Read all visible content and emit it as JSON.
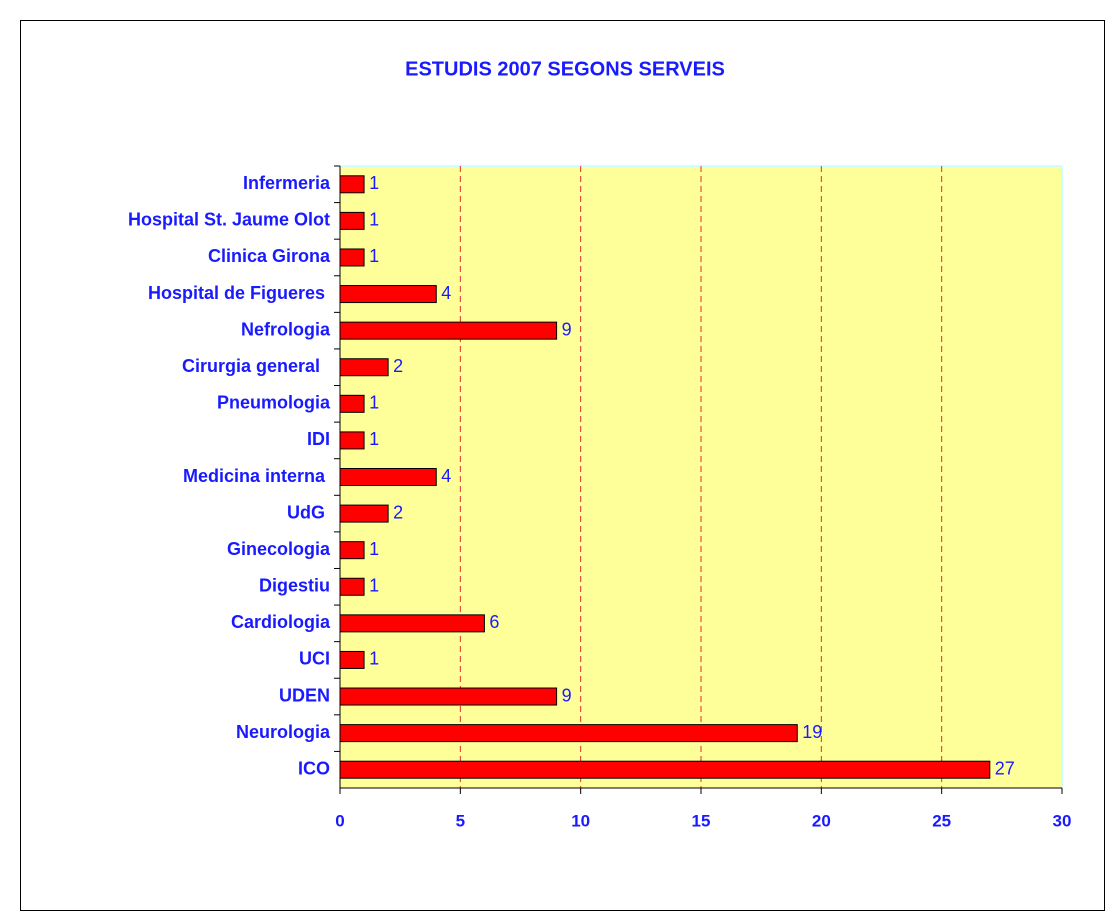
{
  "chart_data": {
    "type": "bar",
    "orientation": "horizontal",
    "title": "ESTUDIS 2007 SEGONS SERVEIS",
    "categories": [
      "Infermeria",
      "Hospital St. Jaume Olot",
      "Clinica Girona",
      "Hospital de Figueres ",
      "Nefrologia",
      "Cirurgia general  ",
      "Pneumologia",
      "IDI",
      "Medicina interna ",
      "UdG ",
      "Ginecologia",
      "Digestiu",
      "Cardiologia",
      "UCI",
      "UDEN",
      "Neurologia",
      "ICO"
    ],
    "values": [
      1,
      1,
      1,
      4,
      9,
      2,
      1,
      1,
      4,
      2,
      1,
      1,
      6,
      1,
      9,
      19,
      27
    ],
    "color": "#ff0000",
    "xlim": [
      0,
      30
    ],
    "xticks": [
      0,
      5,
      10,
      15,
      20,
      25,
      30
    ],
    "grid": true,
    "background": "#ffff99"
  }
}
